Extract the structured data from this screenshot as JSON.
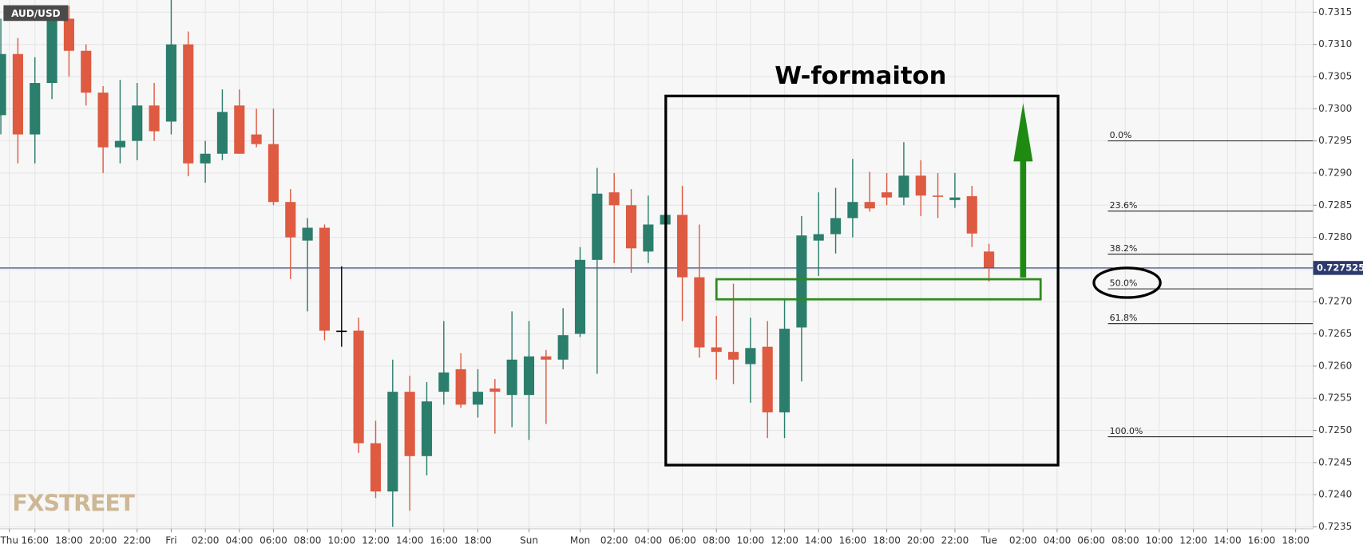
{
  "chart_data": {
    "type": "candlestick",
    "symbol": "AUD/USD",
    "annotations": [
      "W-formaiton"
    ],
    "watermark": "FXSTREET",
    "up_color": "#2b7d6c",
    "down_color": "#de5a41",
    "neutral_color": "#000000",
    "last_price": 0.727525,
    "last_price_color": "#2c3a6e",
    "grid": true,
    "xlim": [
      13.95,
      91.03
    ],
    "ylim": [
      0.72347,
      0.73169
    ],
    "xticks": [
      {
        "value": 14.5,
        "label": "Thu"
      },
      {
        "value": 16,
        "label": "16:00"
      },
      {
        "value": 18,
        "label": "18:00"
      },
      {
        "value": 20,
        "label": "20:00"
      },
      {
        "value": 22,
        "label": "22:00"
      },
      {
        "value": 24,
        "label": "Fri"
      },
      {
        "value": 26,
        "label": "02:00"
      },
      {
        "value": 28,
        "label": "04:00"
      },
      {
        "value": 30,
        "label": "06:00"
      },
      {
        "value": 32,
        "label": "08:00"
      },
      {
        "value": 34,
        "label": "10:00"
      },
      {
        "value": 36,
        "label": "12:00"
      },
      {
        "value": 38,
        "label": "14:00"
      },
      {
        "value": 40,
        "label": "16:00"
      },
      {
        "value": 42,
        "label": "18:00"
      },
      {
        "value": 45,
        "label": "Sun"
      },
      {
        "value": 48,
        "label": "Mon"
      },
      {
        "value": 50,
        "label": "02:00"
      },
      {
        "value": 52,
        "label": "04:00"
      },
      {
        "value": 54,
        "label": "06:00"
      },
      {
        "value": 56,
        "label": "08:00"
      },
      {
        "value": 58,
        "label": "10:00"
      },
      {
        "value": 60,
        "label": "12:00"
      },
      {
        "value": 62,
        "label": "14:00"
      },
      {
        "value": 64,
        "label": "16:00"
      },
      {
        "value": 66,
        "label": "18:00"
      },
      {
        "value": 68,
        "label": "20:00"
      },
      {
        "value": 70,
        "label": "22:00"
      },
      {
        "value": 72,
        "label": "Tue"
      },
      {
        "value": 74,
        "label": "02:00"
      },
      {
        "value": 76,
        "label": "04:00"
      },
      {
        "value": 78,
        "label": "06:00"
      },
      {
        "value": 80,
        "label": "08:00"
      },
      {
        "value": 82,
        "label": "10:00"
      },
      {
        "value": 84,
        "label": "12:00"
      },
      {
        "value": 86,
        "label": "14:00"
      },
      {
        "value": 88,
        "label": "16:00"
      },
      {
        "value": 90,
        "label": "18:00"
      }
    ],
    "yticks": [
      0.7235,
      {
        "value": 0.724,
        "label": "0.7240"
      },
      0.7245,
      {
        "value": 0.725,
        "label": "0.7250"
      },
      0.7255,
      {
        "value": 0.726,
        "label": "0.7260"
      },
      0.7265,
      {
        "value": 0.727,
        "label": "0.7270"
      },
      0.7275,
      {
        "value": 0.728,
        "label": "0.7280"
      },
      0.7285,
      {
        "value": 0.729,
        "label": "0.7290"
      },
      0.7295,
      {
        "value": 0.73,
        "label": "0.7300"
      },
      0.7305,
      {
        "value": 0.731,
        "label": "0.7310"
      },
      0.7315
    ],
    "fib_levels": [
      {
        "label": "0.0%",
        "value": 0.7295
      },
      {
        "label": "23.6%",
        "value": 0.72841
      },
      {
        "label": "38.2%",
        "value": 0.72774
      },
      {
        "label": "50.0%",
        "value": 0.7272
      },
      {
        "label": "61.8%",
        "value": 0.72666
      },
      {
        "label": "100.0%",
        "value": 0.7249
      }
    ],
    "x": [
      14,
      15,
      16,
      17,
      18,
      19,
      20,
      21,
      22,
      23,
      24,
      25,
      26,
      27,
      28,
      29,
      30,
      31,
      32,
      33,
      34,
      35,
      36,
      37,
      38,
      39,
      40,
      41,
      42,
      43,
      44,
      45,
      46,
      47,
      48,
      49,
      50,
      51,
      52,
      53,
      54,
      55,
      56,
      57,
      58,
      59,
      60,
      61,
      62,
      63,
      64,
      65,
      66,
      67,
      68,
      69,
      70,
      71,
      72
    ],
    "open": [
      0.7299,
      0.73085,
      0.7296,
      0.7304,
      0.7314,
      0.7309,
      0.73025,
      0.7294,
      0.7295,
      0.73005,
      0.7298,
      0.731,
      0.72915,
      0.7293,
      0.73005,
      0.7296,
      0.72945,
      0.72855,
      0.72795,
      0.72815,
      0.72655,
      0.72655,
      0.7248,
      0.72405,
      0.7256,
      0.7246,
      0.7256,
      0.72595,
      0.7254,
      0.72565,
      0.72555,
      0.72555,
      0.72615,
      0.7261,
      0.7265,
      0.72765,
      0.7287,
      0.7285,
      0.72778,
      0.7282,
      0.72835,
      0.72738,
      0.72629,
      0.72622,
      0.72603,
      0.7263,
      0.72528,
      0.7266,
      0.72795,
      0.72805,
      0.7283,
      0.72855,
      0.7287,
      0.72862,
      0.72896,
      0.72865,
      0.72858,
      0.72864,
      0.72778
    ],
    "high": [
      0.7314,
      0.7311,
      0.7308,
      0.7316,
      0.7316,
      0.731,
      0.73035,
      0.73045,
      0.7304,
      0.7304,
      0.7317,
      0.7312,
      0.7295,
      0.7303,
      0.7303,
      0.73,
      0.73,
      0.72875,
      0.7283,
      0.7282,
      0.72755,
      0.72675,
      0.72515,
      0.7261,
      0.72585,
      0.72575,
      0.7267,
      0.7262,
      0.72595,
      0.7258,
      0.72685,
      0.7267,
      0.72625,
      0.7269,
      0.72785,
      0.72908,
      0.729,
      0.72875,
      0.72865,
      0.7284,
      0.7288,
      0.7282,
      0.72678,
      0.72728,
      0.72675,
      0.7267,
      0.72704,
      0.72833,
      0.7287,
      0.72877,
      0.72922,
      0.72902,
      0.729,
      0.72948,
      0.7292,
      0.729,
      0.729,
      0.7288,
      0.7279
    ],
    "low": [
      0.7296,
      0.72915,
      0.72915,
      0.73015,
      0.7305,
      0.73005,
      0.729,
      0.72915,
      0.7292,
      0.7295,
      0.7296,
      0.72895,
      0.72885,
      0.7292,
      0.7293,
      0.7294,
      0.7285,
      0.72735,
      0.72685,
      0.7264,
      0.7263,
      0.72465,
      0.72395,
      0.7235,
      0.72375,
      0.7243,
      0.7254,
      0.72535,
      0.7252,
      0.72495,
      0.72505,
      0.72485,
      0.7251,
      0.72595,
      0.72645,
      0.72588,
      0.7276,
      0.72745,
      0.7276,
      0.7282,
      0.7267,
      0.72613,
      0.72579,
      0.72572,
      0.72543,
      0.72488,
      0.72488,
      0.72576,
      0.7274,
      0.72775,
      0.728,
      0.7284,
      0.7285,
      0.7285,
      0.72833,
      0.7283,
      0.72846,
      0.72785,
      0.72731
    ],
    "close": [
      0.73085,
      0.7296,
      0.7304,
      0.7315,
      0.7309,
      0.73025,
      0.7294,
      0.7295,
      0.73005,
      0.72965,
      0.731,
      0.72915,
      0.7293,
      0.72995,
      0.7293,
      0.72945,
      0.72855,
      0.728,
      0.72815,
      0.72655,
      0.72655,
      0.7248,
      0.72405,
      0.7256,
      0.7246,
      0.72545,
      0.7259,
      0.7254,
      0.7256,
      0.7256,
      0.7261,
      0.72615,
      0.7261,
      0.72648,
      0.72765,
      0.72868,
      0.7285,
      0.72783,
      0.7282,
      0.72835,
      0.72738,
      0.72629,
      0.72622,
      0.7261,
      0.72628,
      0.72528,
      0.72658,
      0.72803,
      0.72805,
      0.7283,
      0.72855,
      0.72845,
      0.72862,
      0.72896,
      0.72865,
      0.72864,
      0.72862,
      0.72806,
      0.72753
    ]
  }
}
